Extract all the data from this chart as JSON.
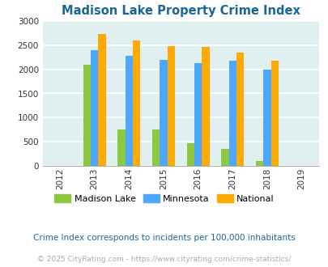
{
  "title": "Madison Lake Property Crime Index",
  "all_years": [
    "2012",
    "2013",
    "2014",
    "2015",
    "2016",
    "2017",
    "2018",
    "2019"
  ],
  "data_years": [
    2013,
    2014,
    2015,
    2016,
    2017,
    2018
  ],
  "madison_lake": [
    2100,
    750,
    750,
    460,
    350,
    90
  ],
  "minnesota": [
    2400,
    2280,
    2200,
    2130,
    2180,
    2000
  ],
  "national": [
    2730,
    2600,
    2490,
    2460,
    2350,
    2180
  ],
  "color_madison": "#8dc63f",
  "color_minnesota": "#4da6ff",
  "color_national": "#ffaa00",
  "ylim": [
    0,
    3000
  ],
  "yticks": [
    0,
    500,
    1000,
    1500,
    2000,
    2500,
    3000
  ],
  "legend_labels": [
    "Madison Lake",
    "Minnesota",
    "National"
  ],
  "footnote1": "Crime Index corresponds to incidents per 100,000 inhabitants",
  "footnote2": "© 2025 CityRating.com - https://www.cityrating.com/crime-statistics/",
  "background_color": "#e0eff0",
  "title_color": "#1a6699",
  "footnote1_color": "#1a6699",
  "footnote2_color": "#aaaaaa",
  "bar_width": 0.22
}
